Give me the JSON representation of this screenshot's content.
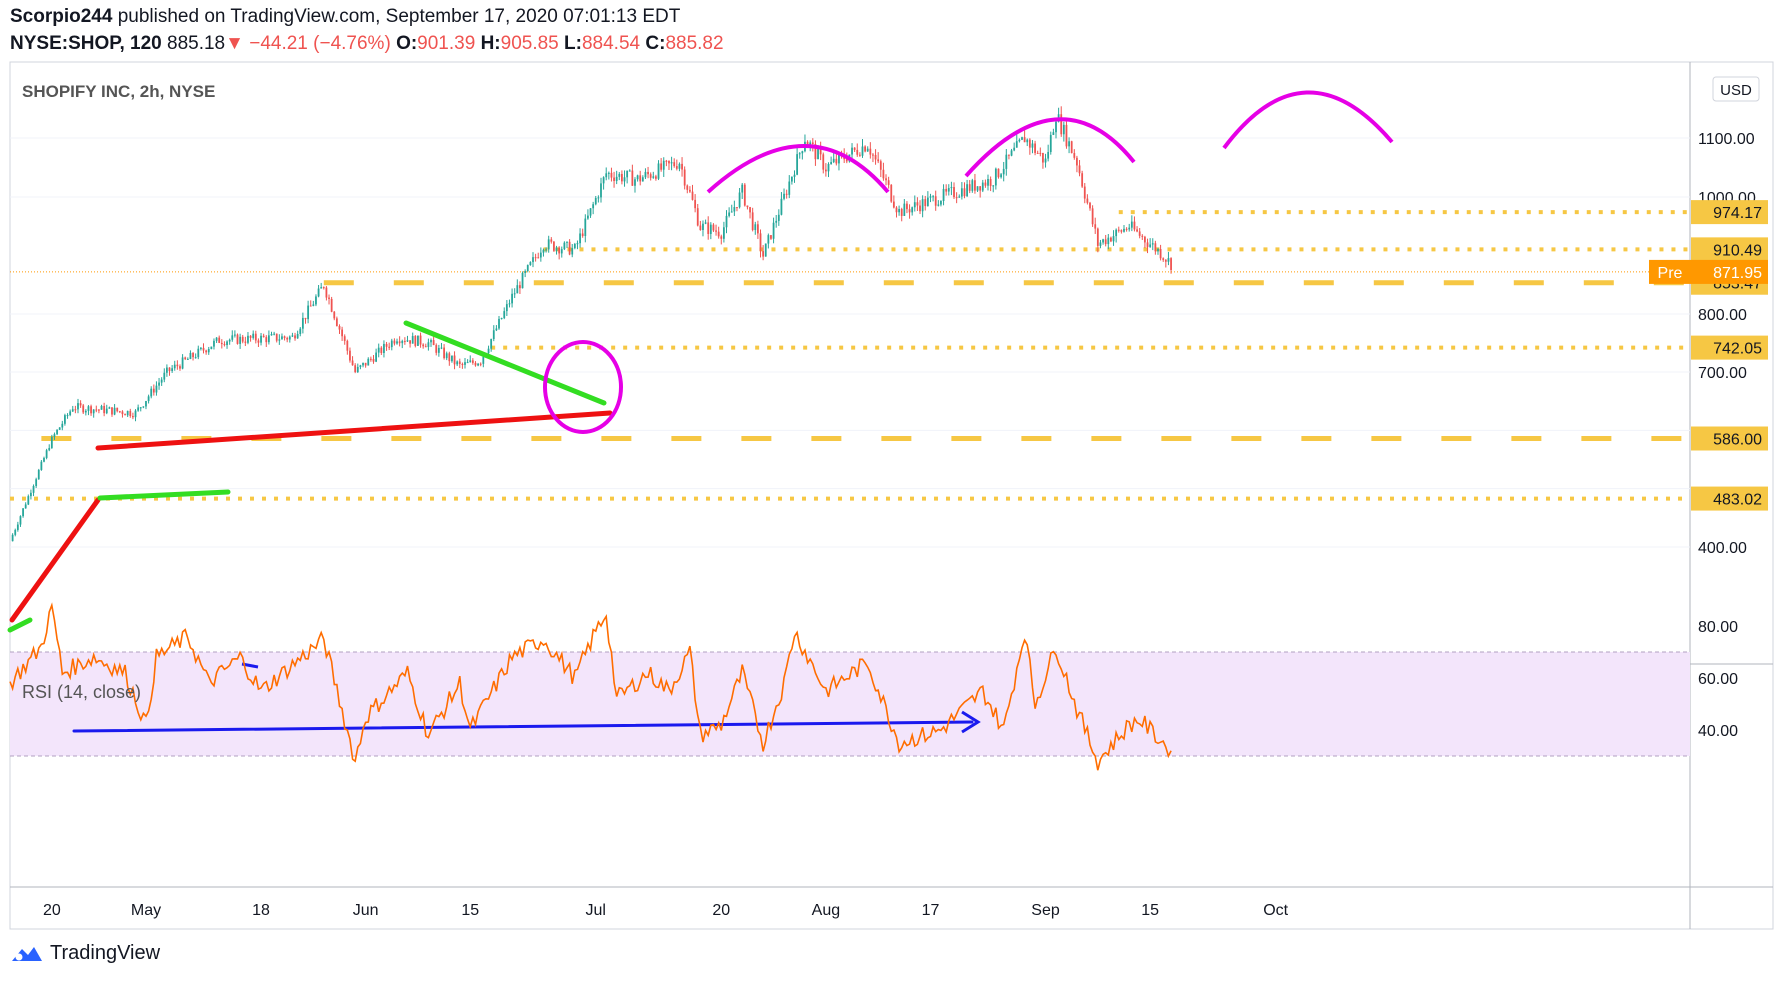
{
  "header": {
    "author": "Scorpio244",
    "published_text": "published on TradingView.com, September 17, 2020 07:01:13 EDT",
    "symbol": "NYSE:SHOP, 120",
    "last": "885.18",
    "arrow": "▼",
    "change": "−44.21 (−4.76%)",
    "o_label": "O:",
    "o": "901.39",
    "h_label": "H:",
    "h": "905.85",
    "l_label": "L:",
    "l": "884.54",
    "c_label": "C:",
    "c": "885.82"
  },
  "legend": {
    "title": "SHOPIFY INC, 2h, NYSE",
    "currency": "USD"
  },
  "rsi": {
    "title": "RSI (14, close)"
  },
  "footer": {
    "brand": "TradingView"
  },
  "colors": {
    "up": "#26a69a",
    "down": "#ef5350",
    "level": "#f6c744",
    "pink": "#e600e6",
    "green": "#33dd22",
    "red": "#ee1111",
    "blue": "#1a1aee",
    "rsi": "#ff6d00",
    "rsi_band": "#f3e5fb"
  },
  "chart_data": [
    {
      "type": "candlestick",
      "title": "SHOPIFY INC, 2h, NYSE",
      "x_ticks": [
        "20",
        "May",
        "18",
        "Jun",
        "15",
        "Jul",
        "20",
        "Aug",
        "17",
        "Sep",
        "15",
        "Oct"
      ],
      "y_ticks": [
        "1100.00",
        "1000.00",
        "800.00",
        "700.00",
        "400.00"
      ],
      "ylim": [
        340,
        1200
      ],
      "horizontal_levels": [
        "974.17",
        "910.49",
        "853.47",
        "742.05",
        "586.00",
        "483.02"
      ],
      "premarket": {
        "label": "Pre",
        "value": "871.95"
      },
      "anchors_date_price": [
        [
          "Apr 14",
          410
        ],
        [
          "Apr 20",
          585
        ],
        [
          "Apr 22",
          640
        ],
        [
          "Apr 30",
          630
        ],
        [
          "May 5",
          700
        ],
        [
          "May 12",
          755
        ],
        [
          "May 21",
          760
        ],
        [
          "May 26",
          850
        ],
        [
          "May 29",
          700
        ],
        [
          "Jun 4",
          760
        ],
        [
          "Jun 9",
          750
        ],
        [
          "Jun 12",
          710
        ],
        [
          "Jun 16",
          720
        ],
        [
          "Jun 19",
          830
        ],
        [
          "Jun 24",
          920
        ],
        [
          "Jun 29",
          910
        ],
        [
          "Jul 2",
          1040
        ],
        [
          "Jul 8",
          1030
        ],
        [
          "Jul 14",
          1060
        ],
        [
          "Jul 16",
          950
        ],
        [
          "Jul 20",
          940
        ],
        [
          "Jul 22",
          1010
        ],
        [
          "Jul 24",
          900
        ],
        [
          "Jul 28",
          1000
        ],
        [
          "Jul 30",
          1100
        ],
        [
          "Aug 3",
          1050
        ],
        [
          "Aug 7",
          1090
        ],
        [
          "Aug 12",
          975
        ],
        [
          "Aug 18",
          1000
        ],
        [
          "Aug 25",
          1030
        ],
        [
          "Aug 28",
          1100
        ],
        [
          "Sep 1",
          1060
        ],
        [
          "Sep 2",
          1140
        ],
        [
          "Sep 4",
          1060
        ],
        [
          "Sep 8",
          920
        ],
        [
          "Sep 11",
          950
        ],
        [
          "Sep 16",
          905
        ],
        [
          "Sep 17",
          886
        ]
      ]
    },
    {
      "type": "line",
      "title": "RSI (14, close)",
      "y_ticks": [
        "80.00",
        "60.00",
        "40.00"
      ],
      "ylim": [
        20,
        90
      ],
      "band": [
        30,
        70
      ],
      "anchors_date_value": [
        [
          "Apr 14",
          58
        ],
        [
          "Apr 17",
          72
        ],
        [
          "Apr 20",
          88
        ],
        [
          "Apr 21",
          62
        ],
        [
          "Apr 24",
          68
        ],
        [
          "Apr 29",
          62
        ],
        [
          "May 1",
          42
        ],
        [
          "May 4",
          68
        ],
        [
          "May 7",
          76
        ],
        [
          "May 11",
          58
        ],
        [
          "May 14",
          68
        ],
        [
          "May 18",
          55
        ],
        [
          "May 21",
          65
        ],
        [
          "May 26",
          75
        ],
        [
          "May 29",
          28
        ],
        [
          "Jun 1",
          45
        ],
        [
          "Jun 5",
          62
        ],
        [
          "Jun 9",
          38
        ],
        [
          "Jun 12",
          58
        ],
        [
          "Jun 15",
          40
        ],
        [
          "Jun 19",
          68
        ],
        [
          "Jun 24",
          75
        ],
        [
          "Jun 29",
          60
        ],
        [
          "Jul 1",
          78
        ],
        [
          "Jul 2",
          85
        ],
        [
          "Jul 6",
          52
        ],
        [
          "Jul 9",
          62
        ],
        [
          "Jul 13",
          55
        ],
        [
          "Jul 15",
          70
        ],
        [
          "Jul 16",
          38
        ],
        [
          "Jul 20",
          42
        ],
        [
          "Jul 22",
          62
        ],
        [
          "Jul 24",
          35
        ],
        [
          "Jul 28",
          58
        ],
        [
          "Jul 29",
          78
        ],
        [
          "Aug 3",
          55
        ],
        [
          "Aug 7",
          66
        ],
        [
          "Aug 12",
          35
        ],
        [
          "Aug 18",
          40
        ],
        [
          "Aug 24",
          55
        ],
        [
          "Aug 26",
          40
        ],
        [
          "Aug 28",
          78
        ],
        [
          "Aug 31",
          50
        ],
        [
          "Sep 2",
          72
        ],
        [
          "Sep 4",
          48
        ],
        [
          "Sep 8",
          28
        ],
        [
          "Sep 11",
          42
        ],
        [
          "Sep 14",
          44
        ],
        [
          "Sep 17",
          32
        ]
      ]
    }
  ]
}
